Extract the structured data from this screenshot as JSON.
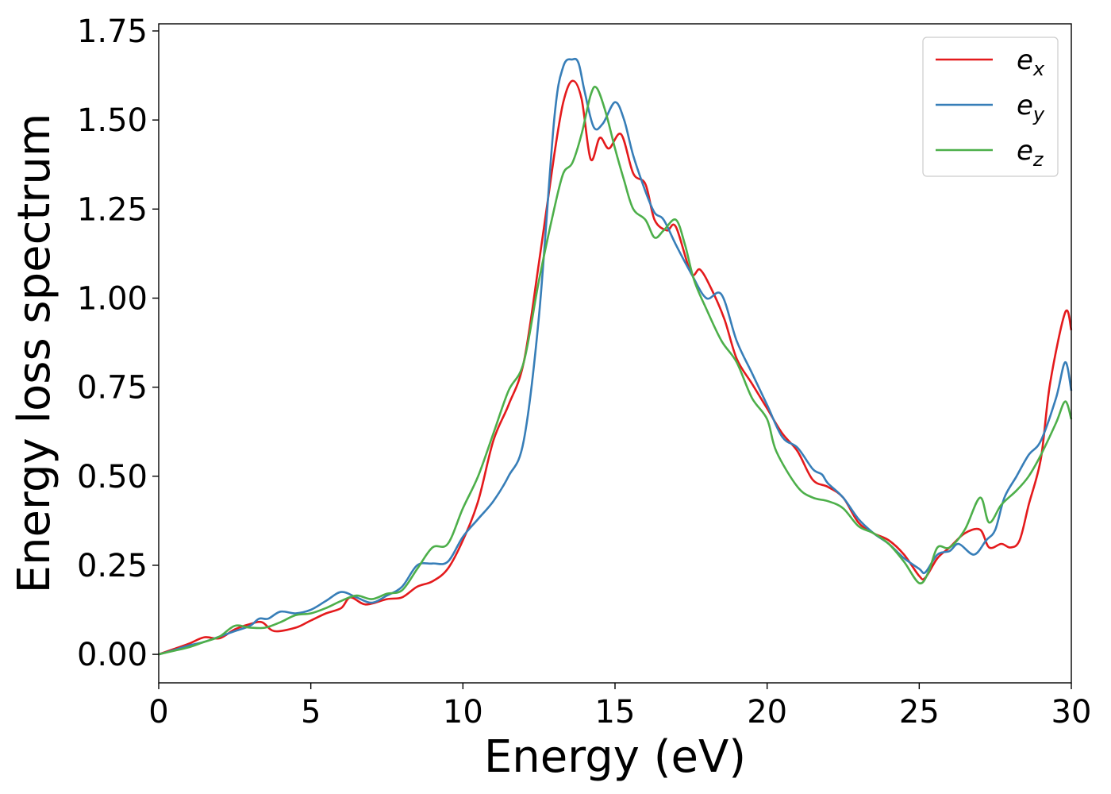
{
  "chart_data": {
    "type": "line",
    "xlabel": "Energy (eV)",
    "ylabel": "Energy loss spectrum",
    "xlim": [
      0,
      30
    ],
    "ylim": [
      -0.08,
      1.77
    ],
    "xticks": [
      0,
      5,
      10,
      15,
      20,
      25,
      30
    ],
    "xtick_labels": [
      "0",
      "5",
      "10",
      "15",
      "20",
      "25",
      "30"
    ],
    "yticks": [
      0.0,
      0.25,
      0.5,
      0.75,
      1.0,
      1.25,
      1.5,
      1.75
    ],
    "ytick_labels": [
      "0.00",
      "0.25",
      "0.50",
      "0.75",
      "1.00",
      "1.25",
      "1.50",
      "1.75"
    ],
    "grid": false,
    "legend_position": "top-right",
    "series": [
      {
        "label_base": "e",
        "label_sub": "x",
        "color": "#e41a1c",
        "points": [
          [
            0,
            0.0
          ],
          [
            0.5,
            0.015
          ],
          [
            1.0,
            0.03
          ],
          [
            1.5,
            0.048
          ],
          [
            2.0,
            0.045
          ],
          [
            2.5,
            0.07
          ],
          [
            3.0,
            0.085
          ],
          [
            3.4,
            0.09
          ],
          [
            3.8,
            0.065
          ],
          [
            4.5,
            0.075
          ],
          [
            5.0,
            0.095
          ],
          [
            5.5,
            0.115
          ],
          [
            6.0,
            0.13
          ],
          [
            6.3,
            0.16
          ],
          [
            6.8,
            0.14
          ],
          [
            7.5,
            0.155
          ],
          [
            8.0,
            0.16
          ],
          [
            8.5,
            0.19
          ],
          [
            9.0,
            0.205
          ],
          [
            9.5,
            0.24
          ],
          [
            10.0,
            0.32
          ],
          [
            10.5,
            0.43
          ],
          [
            11.0,
            0.6
          ],
          [
            11.5,
            0.7
          ],
          [
            12.0,
            0.82
          ],
          [
            12.5,
            1.1
          ],
          [
            13.0,
            1.4
          ],
          [
            13.3,
            1.55
          ],
          [
            13.6,
            1.61
          ],
          [
            13.9,
            1.56
          ],
          [
            14.2,
            1.39
          ],
          [
            14.5,
            1.45
          ],
          [
            14.8,
            1.42
          ],
          [
            15.2,
            1.46
          ],
          [
            15.6,
            1.35
          ],
          [
            16.0,
            1.32
          ],
          [
            16.3,
            1.22
          ],
          [
            16.7,
            1.19
          ],
          [
            17.0,
            1.2
          ],
          [
            17.5,
            1.07
          ],
          [
            17.8,
            1.08
          ],
          [
            18.2,
            1.02
          ],
          [
            18.6,
            0.94
          ],
          [
            19.0,
            0.83
          ],
          [
            19.5,
            0.76
          ],
          [
            20.0,
            0.69
          ],
          [
            20.5,
            0.62
          ],
          [
            21.0,
            0.57
          ],
          [
            21.5,
            0.49
          ],
          [
            22.0,
            0.47
          ],
          [
            22.5,
            0.44
          ],
          [
            23.0,
            0.37
          ],
          [
            23.5,
            0.34
          ],
          [
            24.0,
            0.32
          ],
          [
            24.5,
            0.28
          ],
          [
            25.0,
            0.22
          ],
          [
            25.2,
            0.215
          ],
          [
            25.6,
            0.27
          ],
          [
            26.0,
            0.3
          ],
          [
            26.5,
            0.34
          ],
          [
            27.0,
            0.35
          ],
          [
            27.3,
            0.3
          ],
          [
            27.7,
            0.31
          ],
          [
            28.0,
            0.3
          ],
          [
            28.3,
            0.32
          ],
          [
            28.6,
            0.42
          ],
          [
            29.0,
            0.55
          ],
          [
            29.3,
            0.76
          ],
          [
            29.8,
            0.96
          ],
          [
            30.0,
            0.91
          ]
        ]
      },
      {
        "label_base": "e",
        "label_sub": "y",
        "color": "#377eb8",
        "points": [
          [
            0,
            0.0
          ],
          [
            0.5,
            0.012
          ],
          [
            1.0,
            0.025
          ],
          [
            1.5,
            0.035
          ],
          [
            2.0,
            0.05
          ],
          [
            2.5,
            0.065
          ],
          [
            3.0,
            0.08
          ],
          [
            3.3,
            0.1
          ],
          [
            3.6,
            0.1
          ],
          [
            4.0,
            0.12
          ],
          [
            4.5,
            0.115
          ],
          [
            5.0,
            0.125
          ],
          [
            5.5,
            0.15
          ],
          [
            6.0,
            0.175
          ],
          [
            6.5,
            0.16
          ],
          [
            7.0,
            0.145
          ],
          [
            7.5,
            0.165
          ],
          [
            8.0,
            0.19
          ],
          [
            8.5,
            0.25
          ],
          [
            9.0,
            0.255
          ],
          [
            9.5,
            0.26
          ],
          [
            10.0,
            0.33
          ],
          [
            10.5,
            0.38
          ],
          [
            11.0,
            0.43
          ],
          [
            11.5,
            0.5
          ],
          [
            12.0,
            0.6
          ],
          [
            12.5,
            0.95
          ],
          [
            13.0,
            1.5
          ],
          [
            13.3,
            1.65
          ],
          [
            13.6,
            1.67
          ],
          [
            13.8,
            1.66
          ],
          [
            14.0,
            1.58
          ],
          [
            14.3,
            1.48
          ],
          [
            14.6,
            1.49
          ],
          [
            15.0,
            1.55
          ],
          [
            15.3,
            1.5
          ],
          [
            15.6,
            1.4
          ],
          [
            16.0,
            1.3
          ],
          [
            16.3,
            1.24
          ],
          [
            16.6,
            1.22
          ],
          [
            17.0,
            1.15
          ],
          [
            17.5,
            1.07
          ],
          [
            18.0,
            1.0
          ],
          [
            18.5,
            1.01
          ],
          [
            19.0,
            0.88
          ],
          [
            19.5,
            0.79
          ],
          [
            20.0,
            0.7
          ],
          [
            20.5,
            0.61
          ],
          [
            21.0,
            0.58
          ],
          [
            21.5,
            0.52
          ],
          [
            21.8,
            0.505
          ],
          [
            22.0,
            0.48
          ],
          [
            22.5,
            0.44
          ],
          [
            23.0,
            0.38
          ],
          [
            23.5,
            0.34
          ],
          [
            24.0,
            0.31
          ],
          [
            24.5,
            0.27
          ],
          [
            25.0,
            0.24
          ],
          [
            25.2,
            0.23
          ],
          [
            25.6,
            0.28
          ],
          [
            26.0,
            0.29
          ],
          [
            26.3,
            0.31
          ],
          [
            26.8,
            0.28
          ],
          [
            27.2,
            0.32
          ],
          [
            27.5,
            0.35
          ],
          [
            27.8,
            0.44
          ],
          [
            28.2,
            0.5
          ],
          [
            28.6,
            0.56
          ],
          [
            29.0,
            0.6
          ],
          [
            29.5,
            0.72
          ],
          [
            29.8,
            0.82
          ],
          [
            30.0,
            0.74
          ]
        ]
      },
      {
        "label_base": "e",
        "label_sub": "z",
        "color": "#4daf4a",
        "points": [
          [
            0,
            0.0
          ],
          [
            0.5,
            0.01
          ],
          [
            1.0,
            0.02
          ],
          [
            1.5,
            0.035
          ],
          [
            2.0,
            0.05
          ],
          [
            2.5,
            0.08
          ],
          [
            3.0,
            0.075
          ],
          [
            3.5,
            0.075
          ],
          [
            4.0,
            0.09
          ],
          [
            4.5,
            0.11
          ],
          [
            5.0,
            0.115
          ],
          [
            5.5,
            0.13
          ],
          [
            6.0,
            0.15
          ],
          [
            6.5,
            0.165
          ],
          [
            7.0,
            0.155
          ],
          [
            7.5,
            0.17
          ],
          [
            8.0,
            0.18
          ],
          [
            8.5,
            0.24
          ],
          [
            9.0,
            0.3
          ],
          [
            9.5,
            0.31
          ],
          [
            10.0,
            0.41
          ],
          [
            10.5,
            0.5
          ],
          [
            11.0,
            0.62
          ],
          [
            11.5,
            0.74
          ],
          [
            12.0,
            0.82
          ],
          [
            12.5,
            1.05
          ],
          [
            13.0,
            1.25
          ],
          [
            13.3,
            1.35
          ],
          [
            13.6,
            1.38
          ],
          [
            13.9,
            1.46
          ],
          [
            14.2,
            1.57
          ],
          [
            14.4,
            1.59
          ],
          [
            14.7,
            1.52
          ],
          [
            15.0,
            1.42
          ],
          [
            15.3,
            1.33
          ],
          [
            15.6,
            1.25
          ],
          [
            16.0,
            1.22
          ],
          [
            16.3,
            1.17
          ],
          [
            16.6,
            1.19
          ],
          [
            17.0,
            1.22
          ],
          [
            17.3,
            1.15
          ],
          [
            17.6,
            1.05
          ],
          [
            18.0,
            0.97
          ],
          [
            18.5,
            0.88
          ],
          [
            19.0,
            0.82
          ],
          [
            19.5,
            0.72
          ],
          [
            20.0,
            0.66
          ],
          [
            20.3,
            0.57
          ],
          [
            21.0,
            0.47
          ],
          [
            21.5,
            0.44
          ],
          [
            22.0,
            0.43
          ],
          [
            22.5,
            0.41
          ],
          [
            23.0,
            0.36
          ],
          [
            23.5,
            0.34
          ],
          [
            24.0,
            0.31
          ],
          [
            24.5,
            0.26
          ],
          [
            25.0,
            0.2
          ],
          [
            25.3,
            0.23
          ],
          [
            25.6,
            0.3
          ],
          [
            26.0,
            0.3
          ],
          [
            26.5,
            0.35
          ],
          [
            27.0,
            0.44
          ],
          [
            27.3,
            0.37
          ],
          [
            27.7,
            0.42
          ],
          [
            28.2,
            0.46
          ],
          [
            28.6,
            0.5
          ],
          [
            29.0,
            0.56
          ],
          [
            29.5,
            0.65
          ],
          [
            29.8,
            0.71
          ],
          [
            30.0,
            0.66
          ]
        ]
      }
    ]
  }
}
